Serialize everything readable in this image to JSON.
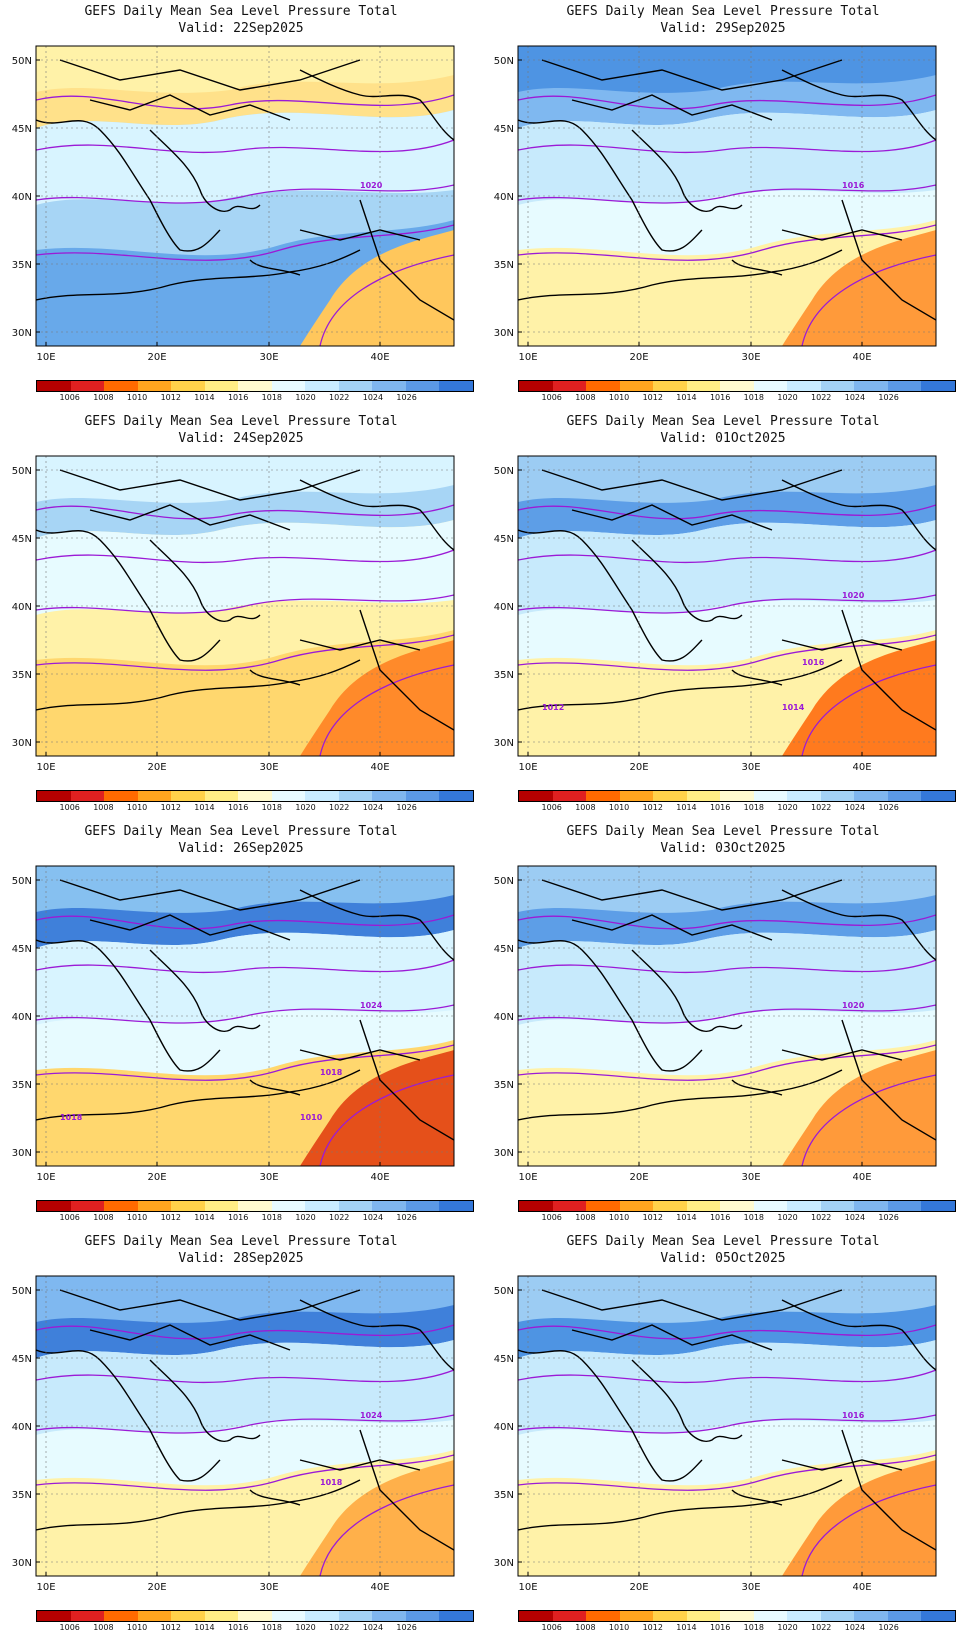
{
  "panels": [
    {
      "title": "GEFS Daily Mean Sea Level Pressure Total",
      "valid": "Valid: 22Sep2025",
      "fills": [
        "#ffe18a",
        "#fff2a8",
        "#d8f4ff",
        "#a7d5f5",
        "#68a9ea",
        "#ffc75c"
      ],
      "contour_labels": [
        "1020"
      ]
    },
    {
      "title": "GEFS Daily Mean Sea Level Pressure Total",
      "valid": "Valid: 29Sep2025",
      "fills": [
        "#7fb8f0",
        "#4e94e3",
        "#c7eafc",
        "#e7fbff",
        "#fff2a8",
        "#ff9a3a"
      ],
      "contour_labels": [
        "1016"
      ]
    },
    {
      "title": "GEFS Daily Mean Sea Level Pressure Total",
      "valid": "Valid: 24Sep2025",
      "fills": [
        "#a7d5f5",
        "#d8f4ff",
        "#e7fbff",
        "#fff2a8",
        "#ffd76e",
        "#ff8a2a"
      ],
      "contour_labels": []
    },
    {
      "title": "GEFS Daily Mean Sea Level Pressure Total",
      "valid": "Valid: 01Oct2025",
      "fills": [
        "#5d9ee7",
        "#9cccf3",
        "#c7eafc",
        "#e7fbff",
        "#fff2a8",
        "#ff7a1e"
      ],
      "contour_labels": [
        "1020",
        "1016",
        "1014",
        "1012"
      ]
    },
    {
      "title": "GEFS Daily Mean Sea Level Pressure Total",
      "valid": "Valid: 26Sep2025",
      "fills": [
        "#3f80da",
        "#86c0f0",
        "#d8f4ff",
        "#e7fbff",
        "#ffd76e",
        "#e5501a"
      ],
      "contour_labels": [
        "1024",
        "1018",
        "1010",
        "1018"
      ]
    },
    {
      "title": "GEFS Daily Mean Sea Level Pressure Total",
      "valid": "Valid: 03Oct2025",
      "fills": [
        "#5d9ee7",
        "#9cccf3",
        "#c7eafc",
        "#e7fbff",
        "#fff2a8",
        "#ff9a3a"
      ],
      "contour_labels": [
        "1020"
      ]
    },
    {
      "title": "GEFS Daily Mean Sea Level Pressure Total",
      "valid": "Valid: 28Sep2025",
      "fills": [
        "#3f80da",
        "#7fb8f0",
        "#c7eafc",
        "#e7fbff",
        "#fff2a8",
        "#ffb04a"
      ],
      "contour_labels": [
        "1024",
        "1018"
      ]
    },
    {
      "title": "GEFS Daily Mean Sea Level Pressure Total",
      "valid": "Valid: 05Oct2025",
      "fills": [
        "#4e94e3",
        "#9cccf3",
        "#c7eafc",
        "#e7fbff",
        "#fff2a8",
        "#ff9a3a"
      ],
      "contour_labels": [
        "1016"
      ]
    }
  ],
  "axes": {
    "lat_labels": [
      "50N",
      "45N",
      "40N",
      "35N",
      "30N"
    ],
    "lon_labels": [
      "10E",
      "20E",
      "30E",
      "40E"
    ]
  },
  "colorbar": {
    "colors": [
      "#b50000",
      "#e02020",
      "#ff6a00",
      "#ffa51f",
      "#ffd24a",
      "#ffee85",
      "#fffbd0",
      "#e8fbff",
      "#c9ecff",
      "#a3d2f6",
      "#7fb6ef",
      "#5b99e6",
      "#3478da"
    ],
    "labels": [
      "1006",
      "1008",
      "1010",
      "1012",
      "1014",
      "1016",
      "1018",
      "1020",
      "1022",
      "1024",
      "1026"
    ]
  }
}
